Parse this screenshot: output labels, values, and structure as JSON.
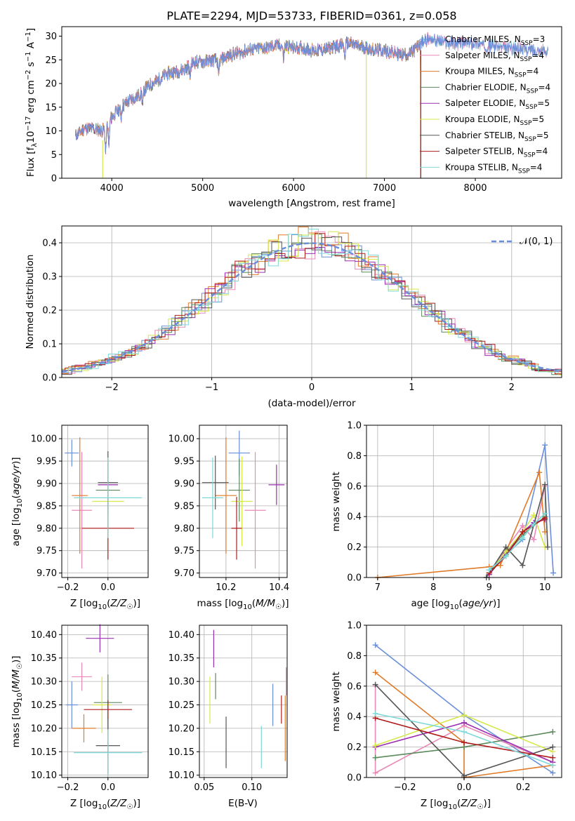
{
  "colors": {
    "Chabrier MILES": "#6a8fd8",
    "Salpeter MILES": "#e889b8",
    "Kroupa MILES": "#e07b2a",
    "Chabrier ELODIE": "#5c8a5c",
    "Salpeter ELODIE": "#9b2fb0",
    "Kroupa ELODIE": "#d6e84a",
    "Chabrier STELIB": "#555555",
    "Salpeter STELIB": "#b01c1c",
    "Kroupa STELIB": "#7fd8d8"
  },
  "chart_data": [
    {
      "type": "line",
      "title": "PLATE=2294, MJD=53733, FIBERID=0361, z=0.058",
      "xlabel": "wavelength [Angstrom, rest frame]",
      "ylabel": "Flux [f_λ 10^-17 erg cm^-2 s^-1 A^-1]",
      "xlim": [
        3450,
        8950
      ],
      "ylim": [
        0,
        32
      ],
      "xticks": [
        "4000",
        "5000",
        "6000",
        "7000",
        "8000"
      ],
      "yticks": [
        "0",
        "5",
        "10",
        "15",
        "20",
        "25",
        "30"
      ],
      "grid": false,
      "legend_position": "right",
      "legend": [
        {
          "name": "Chabrier MILES, N",
          "sub": "SSP",
          "tail": "=3"
        },
        {
          "name": "Salpeter MILES, N",
          "sub": "SSP",
          "tail": "=4"
        },
        {
          "name": "Kroupa MILES, N",
          "sub": "SSP",
          "tail": "=4"
        },
        {
          "name": "Chabrier ELODIE, N",
          "sub": "SSP",
          "tail": "=4"
        },
        {
          "name": "Salpeter ELODIE, N",
          "sub": "SSP",
          "tail": "=5"
        },
        {
          "name": "Kroupa ELODIE, N",
          "sub": "SSP",
          "tail": "=5"
        },
        {
          "name": "Chabrier STELIB, N",
          "sub": "SSP",
          "tail": "=5"
        },
        {
          "name": "Salpeter STELIB, N",
          "sub": "SSP",
          "tail": "=4"
        },
        {
          "name": "Kroupa STELIB, N",
          "sub": "SSP",
          "tail": "=4"
        }
      ],
      "continuum": {
        "x": [
          3600,
          3700,
          3800,
          3900,
          4000,
          4100,
          4200,
          4300,
          4400,
          4500,
          4600,
          4700,
          4800,
          4900,
          5000,
          5100,
          5200,
          5300,
          5400,
          5500,
          5600,
          5700,
          5800,
          5900,
          6000,
          6100,
          6200,
          6300,
          6400,
          6500,
          6600,
          6700,
          6800,
          6900,
          7000,
          7100,
          7200,
          7300,
          7400,
          7500,
          7600,
          7700,
          7800,
          7900,
          8000,
          8100,
          8200,
          8300,
          8400,
          8500,
          8600,
          8700,
          8800
        ],
        "y": [
          9,
          10.5,
          10.5,
          10,
          13,
          15,
          16.5,
          17.5,
          19.5,
          20.5,
          22,
          22.5,
          23,
          24.5,
          24.5,
          25,
          25,
          26,
          26.5,
          27,
          27.5,
          27.5,
          28,
          28,
          27.5,
          27.5,
          27,
          27,
          27.5,
          28,
          28.5,
          28,
          27.5,
          27,
          27,
          26.5,
          26,
          26.5,
          28.5,
          29.5,
          29,
          28.5,
          28.5,
          28.5,
          28.5,
          28,
          28,
          27.5,
          27.5,
          27.5,
          27,
          27,
          27
        ]
      }
    },
    {
      "type": "line",
      "xlabel": "(data-model)/error",
      "ylabel": "Normed distribution",
      "xlim": [
        -2.5,
        2.5
      ],
      "ylim": [
        0,
        0.45
      ],
      "xticks": [
        "−2",
        "−1",
        "0",
        "1",
        "2"
      ],
      "yticks": [
        "0.0",
        "0.1",
        "0.2",
        "0.3",
        "0.4"
      ],
      "grid": true,
      "legend": "𝒩(0, 1)",
      "legend_position": "top-right"
    },
    {
      "type": "scatter",
      "xlabel": "Z [log10(Z/Z☉)]",
      "ylabel": "age [log10(age/yr)]",
      "xticks": [
        "−0.2",
        "0.0"
      ],
      "yticks": [
        "9.70",
        "9.75",
        "9.80",
        "9.85",
        "9.90",
        "9.95",
        "10.00"
      ],
      "xlim": [
        -0.23,
        0.2
      ],
      "ylim": [
        9.69,
        10.03
      ],
      "points": [
        {
          "series": "Chabrier MILES",
          "x": -0.18,
          "y": 9.968,
          "xerr": 0.035,
          "yerr": 0.03
        },
        {
          "series": "Salpeter MILES",
          "x": -0.13,
          "y": 9.84,
          "xerr": 0.05,
          "yerr": 0.13
        },
        {
          "series": "Kroupa MILES",
          "x": -0.14,
          "y": 9.873,
          "xerr": 0.04,
          "yerr": 0.13
        },
        {
          "series": "Chabrier ELODIE",
          "x": 0.0,
          "y": 9.885,
          "xerr": 0.06,
          "yerr": 0.06
        },
        {
          "series": "Salpeter ELODIE",
          "x": 0.0,
          "y": 9.897,
          "xerr": 0.05,
          "yerr": 0.045
        },
        {
          "series": "Kroupa ELODIE",
          "x": 0.0,
          "y": 9.86,
          "xerr": 0.08,
          "yerr": 0.1
        },
        {
          "series": "Chabrier STELIB",
          "x": 0.0,
          "y": 9.902,
          "xerr": 0.05,
          "yerr": 0.07
        },
        {
          "series": "Salpeter STELIB",
          "x": 0.0,
          "y": 9.8,
          "xerr": 0.13,
          "yerr": 0.07
        },
        {
          "series": "Kroupa STELIB",
          "x": 0.0,
          "y": 9.868,
          "xerr": 0.17,
          "yerr": 0.09
        }
      ]
    },
    {
      "type": "scatter",
      "xlabel": "mass [log10(M/M☉)]",
      "xticks": [
        "10.2",
        "10.4"
      ],
      "yticks": [
        "9.70",
        "9.75",
        "9.80",
        "9.85",
        "9.90",
        "9.95",
        "10.00"
      ],
      "xlim": [
        10.1,
        10.43
      ],
      "ylim": [
        9.69,
        10.03
      ],
      "points": [
        {
          "series": "Chabrier MILES",
          "x": 10.25,
          "y": 9.968,
          "xerr": 0.04,
          "yerr": 0.05
        },
        {
          "series": "Salpeter MILES",
          "x": 10.31,
          "y": 9.84,
          "xerr": 0.04,
          "yerr": 0.13
        },
        {
          "series": "Kroupa MILES",
          "x": 10.2,
          "y": 9.873,
          "xerr": 0.04,
          "yerr": 0.13
        },
        {
          "series": "Chabrier ELODIE",
          "x": 10.25,
          "y": 9.885,
          "xerr": 0.04,
          "yerr": 0.07
        },
        {
          "series": "Salpeter ELODIE",
          "x": 10.39,
          "y": 9.897,
          "xerr": 0.03,
          "yerr": 0.045
        },
        {
          "series": "Kroupa ELODIE",
          "x": 10.26,
          "y": 9.86,
          "xerr": 0.04,
          "yerr": 0.1
        },
        {
          "series": "Chabrier STELIB",
          "x": 10.16,
          "y": 9.902,
          "xerr": 0.05,
          "yerr": 0.06
        },
        {
          "series": "Salpeter STELIB",
          "x": 10.24,
          "y": 9.8,
          "xerr": 0.02,
          "yerr": 0.07
        },
        {
          "series": "Kroupa STELIB",
          "x": 10.15,
          "y": 9.868,
          "xerr": 0.04,
          "yerr": 0.09
        }
      ]
    },
    {
      "type": "line",
      "xlabel": "age [log10(age/yr)]",
      "ylabel": "mass weight",
      "xticks": [
        "7",
        "8",
        "9",
        "10"
      ],
      "yticks": [
        "0.0",
        "0.2",
        "0.4",
        "0.6",
        "0.8",
        "1.0"
      ],
      "xlim": [
        6.8,
        10.3
      ],
      "ylim": [
        0,
        1
      ],
      "grid": true,
      "series": [
        {
          "name": "Chabrier MILES",
          "x": [
            9.0,
            9.3,
            9.6,
            10.0,
            10.15
          ],
          "y": [
            0.05,
            0.15,
            0.25,
            0.87,
            0.03
          ]
        },
        {
          "name": "Salpeter MILES",
          "x": [
            9.0,
            9.6,
            9.8,
            10.0
          ],
          "y": [
            0.03,
            0.34,
            0.25,
            0.6
          ]
        },
        {
          "name": "Kroupa MILES",
          "x": [
            7.0,
            9.0,
            9.2,
            9.9,
            10.0
          ],
          "y": [
            0.0,
            0.07,
            0.08,
            0.69,
            0.3
          ]
        },
        {
          "name": "Chabrier ELODIE",
          "x": [
            9.0,
            9.3,
            9.6,
            10.0
          ],
          "y": [
            0.02,
            0.15,
            0.28,
            0.4
          ]
        },
        {
          "name": "Salpeter ELODIE",
          "x": [
            9.0,
            9.3,
            9.6,
            9.8,
            10.0
          ],
          "y": [
            0.02,
            0.16,
            0.3,
            0.36,
            0.38
          ]
        },
        {
          "name": "Kroupa ELODIE",
          "x": [
            9.0,
            9.3,
            9.6,
            9.8,
            10.0
          ],
          "y": [
            0.03,
            0.17,
            0.3,
            0.41,
            0.2
          ]
        },
        {
          "name": "Chabrier STELIB",
          "x": [
            8.95,
            9.3,
            9.6,
            10.0,
            10.05
          ],
          "y": [
            0.0,
            0.2,
            0.08,
            0.61,
            0.2
          ]
        },
        {
          "name": "Salpeter STELIB",
          "x": [
            9.0,
            9.3,
            9.6,
            10.0
          ],
          "y": [
            0.03,
            0.14,
            0.3,
            0.39
          ]
        },
        {
          "name": "Kroupa STELIB",
          "x": [
            9.0,
            9.3,
            9.6,
            9.8,
            10.0
          ],
          "y": [
            0.05,
            0.14,
            0.26,
            0.35,
            0.42
          ]
        }
      ]
    },
    {
      "type": "scatter",
      "xlabel": "Z [log10(Z/Z☉)]",
      "ylabel": "mass [log10(M/M☉)]",
      "xticks": [
        "−0.2",
        "0.0"
      ],
      "yticks": [
        "10.10",
        "10.15",
        "10.20",
        "10.25",
        "10.30",
        "10.35",
        "10.40"
      ],
      "xlim": [
        -0.23,
        0.2
      ],
      "ylim": [
        10.095,
        10.42
      ],
      "points": [
        {
          "series": "Chabrier MILES",
          "x": -0.18,
          "y": 10.25,
          "xerr": 0.03,
          "yerr": 0.05
        },
        {
          "series": "Salpeter MILES",
          "x": -0.13,
          "y": 10.31,
          "xerr": 0.05,
          "yerr": 0.03
        },
        {
          "series": "Kroupa MILES",
          "x": -0.12,
          "y": 10.2,
          "xerr": 0.06,
          "yerr": 0.03
        },
        {
          "series": "Chabrier ELODIE",
          "x": 0.0,
          "y": 10.255,
          "xerr": 0.07,
          "yerr": 0.06
        },
        {
          "series": "Salpeter ELODIE",
          "x": -0.04,
          "y": 10.392,
          "xerr": 0.07,
          "yerr": 0.03
        },
        {
          "series": "Kroupa ELODIE",
          "x": -0.03,
          "y": 10.25,
          "xerr": 0.05,
          "yerr": 0.06
        },
        {
          "series": "Chabrier STELIB",
          "x": 0.0,
          "y": 10.163,
          "xerr": 0.06,
          "yerr": 0.06
        },
        {
          "series": "Salpeter STELIB",
          "x": 0.0,
          "y": 10.24,
          "xerr": 0.12,
          "yerr": 0.02
        },
        {
          "series": "Kroupa STELIB",
          "x": 0.0,
          "y": 10.148,
          "xerr": 0.17,
          "yerr": 0.05
        }
      ]
    },
    {
      "type": "scatter",
      "xlabel": "E(B-V)",
      "xticks": [
        "0.05",
        "0.10"
      ],
      "yticks": [
        "10.10",
        "10.15",
        "10.20",
        "10.25",
        "10.30",
        "10.35",
        "10.40"
      ],
      "xlim": [
        0.045,
        0.137
      ],
      "ylim": [
        10.095,
        10.42
      ],
      "points": [
        {
          "series": "Chabrier MILES",
          "x": 0.122,
          "y": 10.25,
          "yerr": 0.045
        },
        {
          "series": "Salpeter MILES",
          "x": 0.136,
          "y": 10.3,
          "yerr": 0.03
        },
        {
          "series": "Kroupa MILES",
          "x": 0.135,
          "y": 10.2,
          "yerr": 0.07
        },
        {
          "series": "Chabrier ELODIE",
          "x": 0.062,
          "y": 10.29,
          "yerr": 0.028
        },
        {
          "series": "Salpeter ELODIE",
          "x": 0.06,
          "y": 10.37,
          "yerr": 0.04
        },
        {
          "series": "Kroupa ELODIE",
          "x": 0.056,
          "y": 10.26,
          "yerr": 0.05
        },
        {
          "series": "Chabrier STELIB",
          "x": 0.073,
          "y": 10.17,
          "yerr": 0.055
        },
        {
          "series": "Salpeter STELIB",
          "x": 0.131,
          "y": 10.24,
          "yerr": 0.03
        },
        {
          "series": "Kroupa STELIB",
          "x": 0.11,
          "y": 10.16,
          "yerr": 0.045
        }
      ]
    },
    {
      "type": "line",
      "xlabel": "Z [log10(Z/Z☉)]",
      "ylabel": "mass weight",
      "xticks": [
        "−0.2",
        "0.0",
        "0.2"
      ],
      "yticks": [
        "0.0",
        "0.2",
        "0.4",
        "0.6",
        "0.8",
        "1.0"
      ],
      "xlim": [
        -0.33,
        0.33
      ],
      "ylim": [
        0,
        1
      ],
      "grid": true,
      "series": [
        {
          "name": "Chabrier MILES",
          "x": [
            -0.3,
            0.0,
            0.3
          ],
          "y": [
            0.87,
            0.41,
            0.03
          ]
        },
        {
          "name": "Salpeter MILES",
          "x": [
            -0.3,
            -0.3,
            0.0,
            0.3
          ],
          "y": [
            0.6,
            0.03,
            0.34,
            0.1
          ]
        },
        {
          "name": "Kroupa MILES",
          "x": [
            -0.3,
            0.0,
            0.0,
            0.3
          ],
          "y": [
            0.69,
            0.23,
            0.0,
            0.08
          ]
        },
        {
          "name": "Chabrier ELODIE",
          "x": [
            -0.3,
            0.0,
            0.3
          ],
          "y": [
            0.13,
            0.2,
            0.3
          ]
        },
        {
          "name": "Salpeter ELODIE",
          "x": [
            -0.3,
            0.0,
            0.3
          ],
          "y": [
            0.2,
            0.36,
            0.1
          ]
        },
        {
          "name": "Kroupa ELODIE",
          "x": [
            -0.3,
            0.0,
            0.3
          ],
          "y": [
            0.21,
            0.41,
            0.17
          ]
        },
        {
          "name": "Chabrier STELIB",
          "x": [
            -0.3,
            0.0,
            0.3
          ],
          "y": [
            0.61,
            0.01,
            0.2
          ]
        },
        {
          "name": "Salpeter STELIB",
          "x": [
            -0.3,
            0.0,
            0.3
          ],
          "y": [
            0.39,
            0.23,
            0.13
          ]
        },
        {
          "name": "Kroupa STELIB",
          "x": [
            -0.3,
            0.0,
            0.3
          ],
          "y": [
            0.42,
            0.3,
            0.08
          ]
        }
      ]
    }
  ]
}
